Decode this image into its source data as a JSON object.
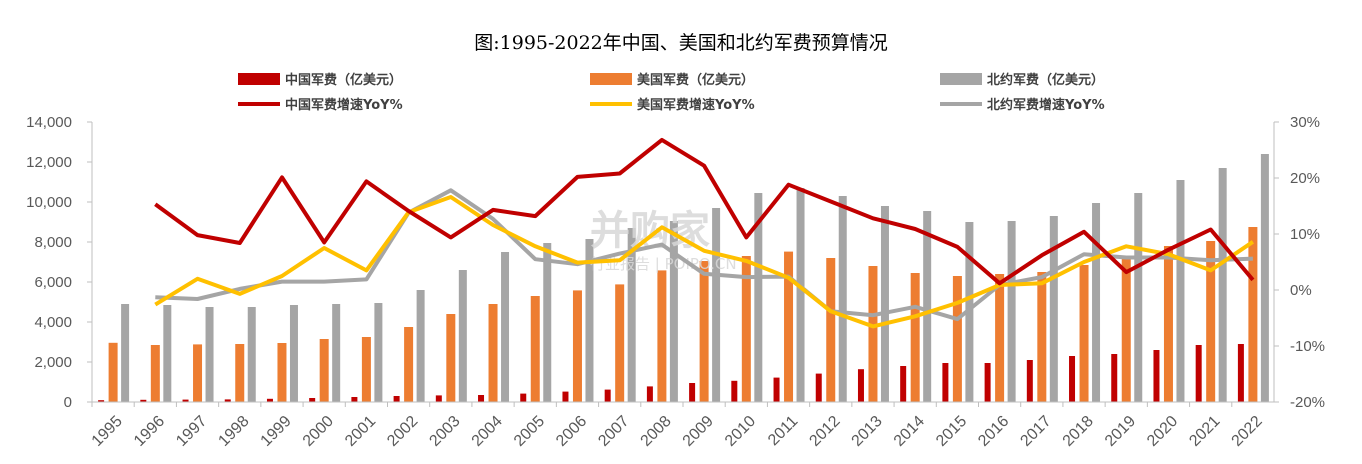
{
  "chart_data": {
    "type": "bar",
    "title": "图:1995-2022年中国、美国和北约军费预算情况",
    "categories": [
      "1995",
      "1996",
      "1997",
      "1998",
      "1999",
      "2000",
      "2001",
      "2002",
      "2003",
      "2004",
      "2005",
      "2006",
      "2007",
      "2008",
      "2009",
      "2010",
      "2011",
      "2012",
      "2013",
      "2014",
      "2015",
      "2016",
      "2017",
      "2018",
      "2019",
      "2020",
      "2021",
      "2022"
    ],
    "y_left": {
      "ylim": [
        0,
        14000
      ],
      "ticks": [
        "0",
        "2,000",
        "4,000",
        "6,000",
        "8,000",
        "10,000",
        "12,000",
        "14,000"
      ]
    },
    "y_right": {
      "ylim": [
        -20,
        30
      ],
      "ticks": [
        "-20%",
        "-10%",
        "0%",
        "10%",
        "20%",
        "30%"
      ]
    },
    "bar_series": [
      {
        "name": "中国军费（亿美元）",
        "color": "#c00000",
        "values": [
          90,
          110,
          120,
          130,
          160,
          200,
          250,
          300,
          330,
          350,
          420,
          520,
          620,
          780,
          950,
          1060,
          1220,
          1420,
          1640,
          1800,
          1950,
          1950,
          2100,
          2300,
          2400,
          2600,
          2850,
          2900
        ]
      },
      {
        "name": "美国军费（亿美元）",
        "color": "#ed7d31",
        "values": [
          2960,
          2850,
          2880,
          2900,
          2950,
          3150,
          3250,
          3750,
          4400,
          4900,
          5300,
          5580,
          5880,
          6580,
          7050,
          7300,
          7520,
          7200,
          6800,
          6450,
          6300,
          6400,
          6500,
          6850,
          7300,
          7800,
          8050,
          8750
        ]
      },
      {
        "name": "北约军费（亿美元）",
        "color": "#a5a5a5",
        "values": [
          4900,
          4850,
          4750,
          4750,
          4850,
          4900,
          4950,
          5600,
          6600,
          7500,
          7950,
          8150,
          8700,
          9050,
          9700,
          10450,
          10700,
          10300,
          9800,
          9550,
          9000,
          9050,
          9300,
          9950,
          10450,
          11100,
          11700,
          12400
        ]
      }
    ],
    "line_series": [
      {
        "name": "中国军费增速YoY%",
        "color": "#c00000",
        "values": [
          null,
          15.3,
          9.8,
          8.4,
          20.1,
          8.5,
          19.4,
          14.1,
          9.4,
          14.3,
          13.2,
          20.2,
          20.8,
          26.8,
          22.2,
          9.4,
          18.8,
          15.8,
          12.8,
          10.9,
          7.7,
          1.2,
          6.2,
          10.4,
          3.2,
          7.2,
          10.8,
          1.8
        ]
      },
      {
        "name": "美国军费增速YoY%",
        "color": "#ffc000",
        "values": [
          null,
          -2.6,
          2.0,
          -0.7,
          2.5,
          7.5,
          3.5,
          13.9,
          16.6,
          11.6,
          7.8,
          4.9,
          5.3,
          11.2,
          7.0,
          5.2,
          2.2,
          -3.8,
          -6.5,
          -4.7,
          -2.3,
          0.9,
          1.2,
          5.0,
          7.8,
          6.4,
          3.5,
          8.6
        ]
      },
      {
        "name": "北约军费增速YoY%",
        "color": "#a5a5a5",
        "values": [
          null,
          -1.3,
          -1.6,
          0.2,
          1.5,
          1.5,
          1.9,
          13.8,
          17.8,
          12.7,
          5.5,
          4.6,
          6.5,
          8.1,
          2.9,
          2.3,
          2.4,
          -3.8,
          -4.5,
          -3.0,
          -5.2,
          0.9,
          2.3,
          6.4,
          5.8,
          5.8,
          5.3,
          5.6
        ]
      }
    ],
    "legend_position": "top",
    "grid": false
  },
  "watermark": {
    "name": "并购家",
    "sub": "行业报告 | POIPO.CN"
  }
}
